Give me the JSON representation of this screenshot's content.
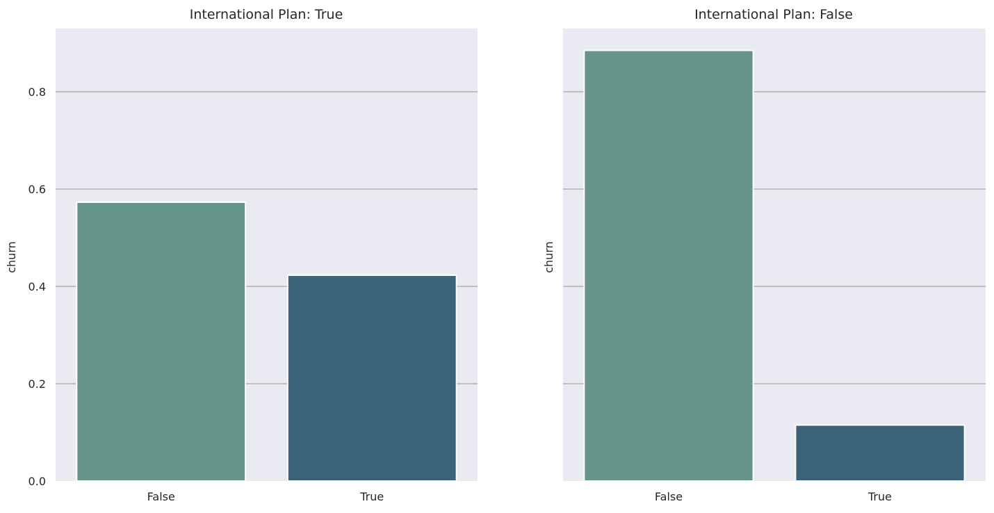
{
  "chart_data": [
    {
      "type": "bar",
      "title": "International Plan: True",
      "xlabel": "",
      "ylabel": "churn",
      "categories": [
        "False",
        "True"
      ],
      "values": [
        0.573,
        0.423
      ],
      "ylim": [
        0,
        0.93
      ],
      "yticks": [
        "0.0",
        "0.2",
        "0.4",
        "0.6",
        "0.8"
      ],
      "show_ytick_labels": true,
      "grid": true
    },
    {
      "type": "bar",
      "title": "International Plan: False",
      "xlabel": "",
      "ylabel": "churn",
      "categories": [
        "False",
        "True"
      ],
      "values": [
        0.885,
        0.115
      ],
      "ylim": [
        0,
        0.93
      ],
      "yticks": [
        "0.0",
        "0.2",
        "0.4",
        "0.6",
        "0.8"
      ],
      "show_ytick_labels": false,
      "grid": true
    }
  ],
  "colors": {
    "bar_false": "#66938a",
    "bar_true": "#3b6478",
    "background": "#eaeaf2",
    "grid": "#b0b0b0"
  }
}
